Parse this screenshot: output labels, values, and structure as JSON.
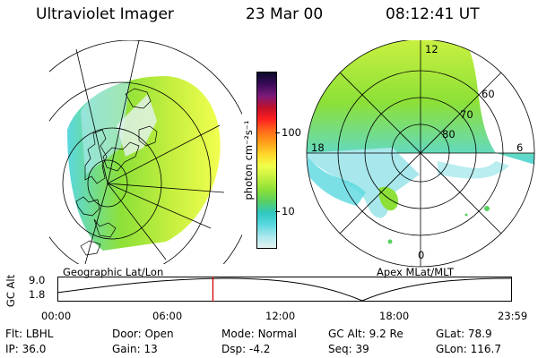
{
  "header": {
    "title": "Ultraviolet Imager",
    "date": "23 Mar 00",
    "time": "08:12:41 UT"
  },
  "left_panel": {
    "caption": "Geographic Lat/Lon"
  },
  "right_panel": {
    "caption": "Apex MLat/MLT",
    "mlt_labels": [
      "12",
      "18",
      "6",
      "0"
    ],
    "lat_labels": [
      "60",
      "70",
      "80"
    ]
  },
  "colorbar": {
    "unit": "photon cm⁻²s⁻¹",
    "ticks": [
      "100",
      "10"
    ],
    "colors": [
      "#0a0a2a",
      "#3a0a5a",
      "#7a1a7a",
      "#c0102a",
      "#ff2020",
      "#ff6a1a",
      "#ffa01a",
      "#ffd82a",
      "#f0ff4a",
      "#c2f040",
      "#8ce038",
      "#5ad060",
      "#30c8c0",
      "#5ad8e0",
      "#a8e8ec",
      "#e6f2f2"
    ]
  },
  "altitude_plot": {
    "axis_label": "GC Alt",
    "y_ticks": [
      "9.0",
      "1.8"
    ],
    "x_ticks": [
      "00:00",
      "06:00",
      "12:00",
      "18:00",
      "23:59"
    ],
    "current_time_marker_hours": 8.21
  },
  "footer": {
    "row1": [
      {
        "label": "Flt:",
        "value": "LBHL"
      },
      {
        "label": "Door:",
        "value": "Open"
      },
      {
        "label": "Mode:",
        "value": "Normal"
      },
      {
        "label": "GC Alt:",
        "value": "9.2 Re"
      },
      {
        "label": "GLat:",
        "value": "78.9"
      }
    ],
    "row2": [
      {
        "label": "IP:",
        "value": "36.0"
      },
      {
        "label": "Gain:",
        "value": "13"
      },
      {
        "label": "Dsp:",
        "value": "-4.2"
      },
      {
        "label": "Seq:",
        "value": "39"
      },
      {
        "label": "GLon:",
        "value": "116.7"
      }
    ]
  }
}
